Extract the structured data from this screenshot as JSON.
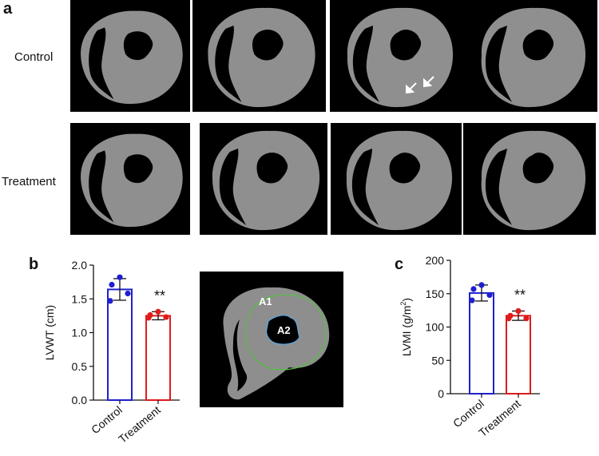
{
  "panels": {
    "a": {
      "letter": "a",
      "rows": [
        {
          "label": "Control",
          "images": 4
        },
        {
          "label": "Treatment",
          "images": 4
        }
      ],
      "image_kind": "cardiac-short-axis-CT",
      "arrow_icon": "arrow-icon"
    },
    "b": {
      "letter": "b"
    },
    "c": {
      "letter": "c"
    },
    "schematic": {
      "label_outer": "A1",
      "label_inner": "A2",
      "outer_color": "#55c041",
      "inner_color": "#5aa6e0"
    }
  },
  "chart_data": [
    {
      "type": "bar",
      "panel": "b",
      "categories": [
        "Control",
        "Treatment"
      ],
      "values": [
        1.64,
        1.25
      ],
      "errors": [
        0.16,
        0.06
      ],
      "points": [
        [
          1.82,
          1.71,
          1.58,
          1.47
        ],
        [
          1.31,
          1.26,
          1.23,
          1.22
        ]
      ],
      "colors": [
        "#1f1fcf",
        "#e01b1b"
      ],
      "ylabel": "LVWT (cm)",
      "ylim": [
        0,
        2.0
      ],
      "yticks": [
        "0.0",
        "0.5",
        "1.0",
        "1.5",
        "2.0"
      ],
      "annotation": "**"
    },
    {
      "type": "bar",
      "panel": "c",
      "categories": [
        "Control",
        "Treatment"
      ],
      "values": [
        151,
        117
      ],
      "errors": [
        12,
        7
      ],
      "points": [
        [
          163,
          157,
          148,
          140
        ],
        [
          124,
          117,
          113,
          113
        ]
      ],
      "colors": [
        "#1f1fcf",
        "#e01b1b"
      ],
      "ylabel_main": "LVMI (g/m",
      "ylabel_sup": "2",
      "ylabel_end": ")",
      "ylim": [
        0,
        200
      ],
      "yticks": [
        "0",
        "50",
        "100",
        "150",
        "200"
      ],
      "annotation": "**"
    }
  ]
}
